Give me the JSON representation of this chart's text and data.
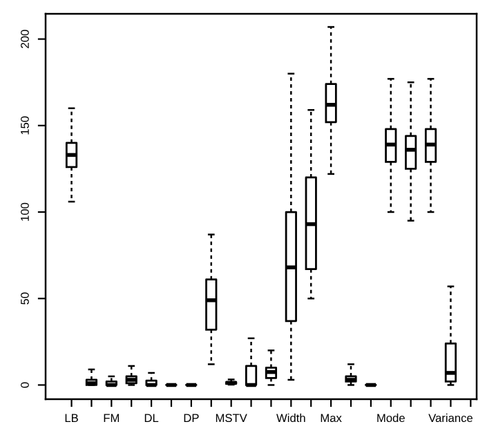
{
  "chart_data": {
    "type": "box",
    "categories": [
      "LB",
      null,
      "FM",
      null,
      "DL",
      null,
      "DP",
      null,
      "MSTV",
      null,
      null,
      "Width",
      null,
      "Max",
      null,
      null,
      "Mode",
      null,
      null,
      "Variance",
      null
    ],
    "boxes": [
      {
        "low": 106,
        "q1": 126,
        "median": 133,
        "q3": 140,
        "high": 160
      },
      {
        "low": 0,
        "q1": 0,
        "median": 1,
        "q3": 3,
        "high": 9
      },
      {
        "low": 0,
        "q1": 0,
        "median": 0,
        "q3": 2,
        "high": 5
      },
      {
        "low": 0,
        "q1": 1,
        "median": 3,
        "q3": 5,
        "high": 11
      },
      {
        "low": 0,
        "q1": 0,
        "median": 0,
        "q3": 2.5,
        "high": 7
      },
      {
        "low": 0,
        "q1": 0,
        "median": 0,
        "q3": 0,
        "high": 0
      },
      {
        "low": 0,
        "q1": 0,
        "median": 0,
        "q3": 0,
        "high": 0
      },
      {
        "low": 12,
        "q1": 32,
        "median": 49,
        "q3": 61,
        "high": 87
      },
      {
        "low": 0.2,
        "q1": 0.7,
        "median": 1.2,
        "q3": 1.7,
        "high": 3.2
      },
      {
        "low": 0,
        "q1": 0,
        "median": 0,
        "q3": 11,
        "high": 27
      },
      {
        "low": 0,
        "q1": 4,
        "median": 7.5,
        "q3": 10,
        "high": 20
      },
      {
        "low": 3,
        "q1": 37,
        "median": 68,
        "q3": 100,
        "high": 180
      },
      {
        "low": 50,
        "q1": 67,
        "median": 93,
        "q3": 120,
        "high": 159
      },
      {
        "low": 122,
        "q1": 152,
        "median": 162,
        "q3": 174,
        "high": 207
      },
      {
        "low": 0,
        "q1": 2,
        "median": 3,
        "q3": 5,
        "high": 12
      },
      {
        "low": 0,
        "q1": 0,
        "median": 0,
        "q3": 0,
        "high": 0
      },
      {
        "low": 100,
        "q1": 129,
        "median": 139,
        "q3": 148,
        "high": 177
      },
      {
        "low": 95,
        "q1": 125,
        "median": 136,
        "q3": 144,
        "high": 175
      },
      {
        "low": 100,
        "q1": 129,
        "median": 139,
        "q3": 148,
        "high": 177
      },
      {
        "low": 0,
        "q1": 2,
        "median": 7,
        "q3": 24,
        "high": 57
      },
      null
    ],
    "ylim": [
      -8.2,
      214.6
    ],
    "yticks": [
      0,
      50,
      100,
      150,
      200
    ],
    "grid": false,
    "legend": false
  }
}
